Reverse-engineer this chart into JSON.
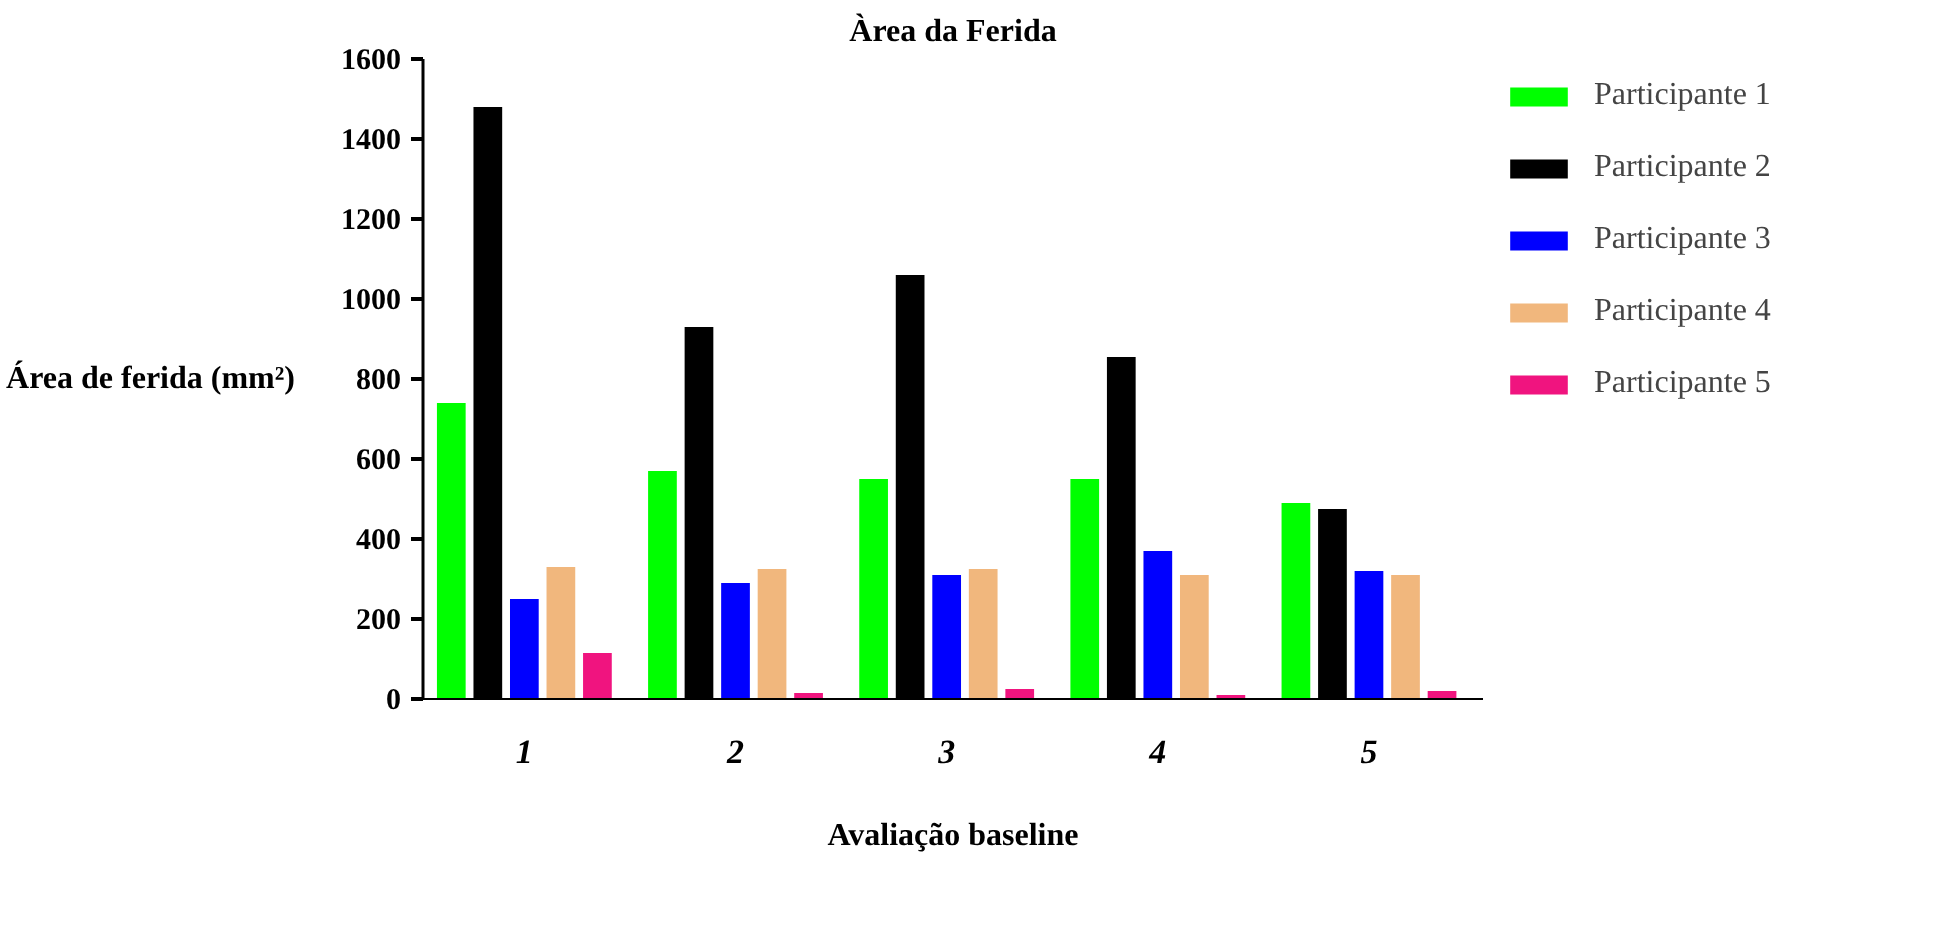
{
  "chart_data": {
    "type": "bar",
    "title": "Àrea da Ferida",
    "xlabel": "Avaliação baseline",
    "ylabel": "Área de ferida (mm²)",
    "categories": [
      "1",
      "2",
      "3",
      "4",
      "5"
    ],
    "series": [
      {
        "name": "Participante 1",
        "color": "#00ff00",
        "values": [
          740,
          570,
          550,
          550,
          490
        ]
      },
      {
        "name": "Participante 2",
        "color": "#000000",
        "values": [
          1480,
          930,
          1060,
          855,
          475
        ]
      },
      {
        "name": "Participante 3",
        "color": "#0000ff",
        "values": [
          250,
          290,
          310,
          370,
          320
        ]
      },
      {
        "name": "Participante 4",
        "color": "#f1b77d",
        "values": [
          330,
          325,
          325,
          310,
          310
        ]
      },
      {
        "name": "Participante 5",
        "color": "#f0147f",
        "values": [
          115,
          15,
          25,
          10,
          20
        ]
      }
    ],
    "ylim": [
      0,
      1600
    ],
    "yticks": [
      0,
      200,
      400,
      600,
      800,
      1000,
      1200,
      1400,
      1600
    ],
    "grid": false,
    "legend": "right"
  }
}
